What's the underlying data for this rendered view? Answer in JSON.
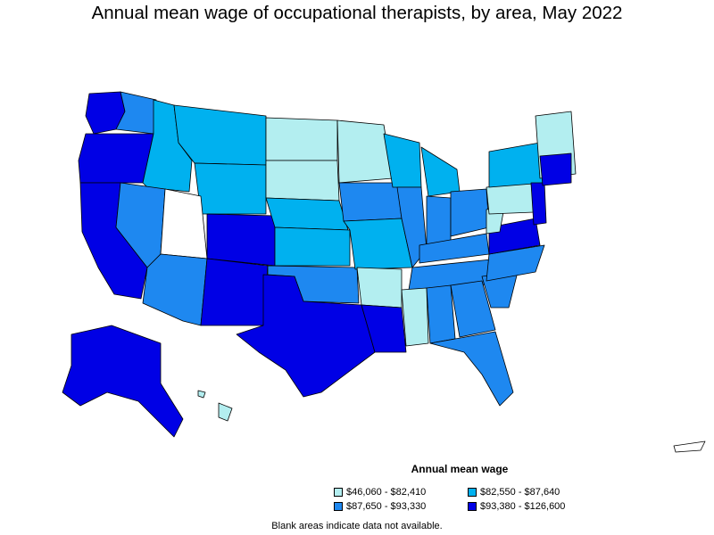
{
  "title": "Annual mean wage of occupational therapists, by area, May 2022",
  "legend": {
    "title": "Annual mean wage",
    "items": [
      {
        "label": "$46,060 - $82,410",
        "color": "#b3eef0"
      },
      {
        "label": "$82,550 - $87,640",
        "color": "#00b1ef"
      },
      {
        "label": "$87,650 - $93,330",
        "color": "#1e88f0"
      },
      {
        "label": "$93,380 - $126,600",
        "color": "#0000e5"
      }
    ]
  },
  "note": "Blank areas indicate data not available.",
  "map_colors": {
    "border": "#000000",
    "blank": "#ffffff"
  }
}
